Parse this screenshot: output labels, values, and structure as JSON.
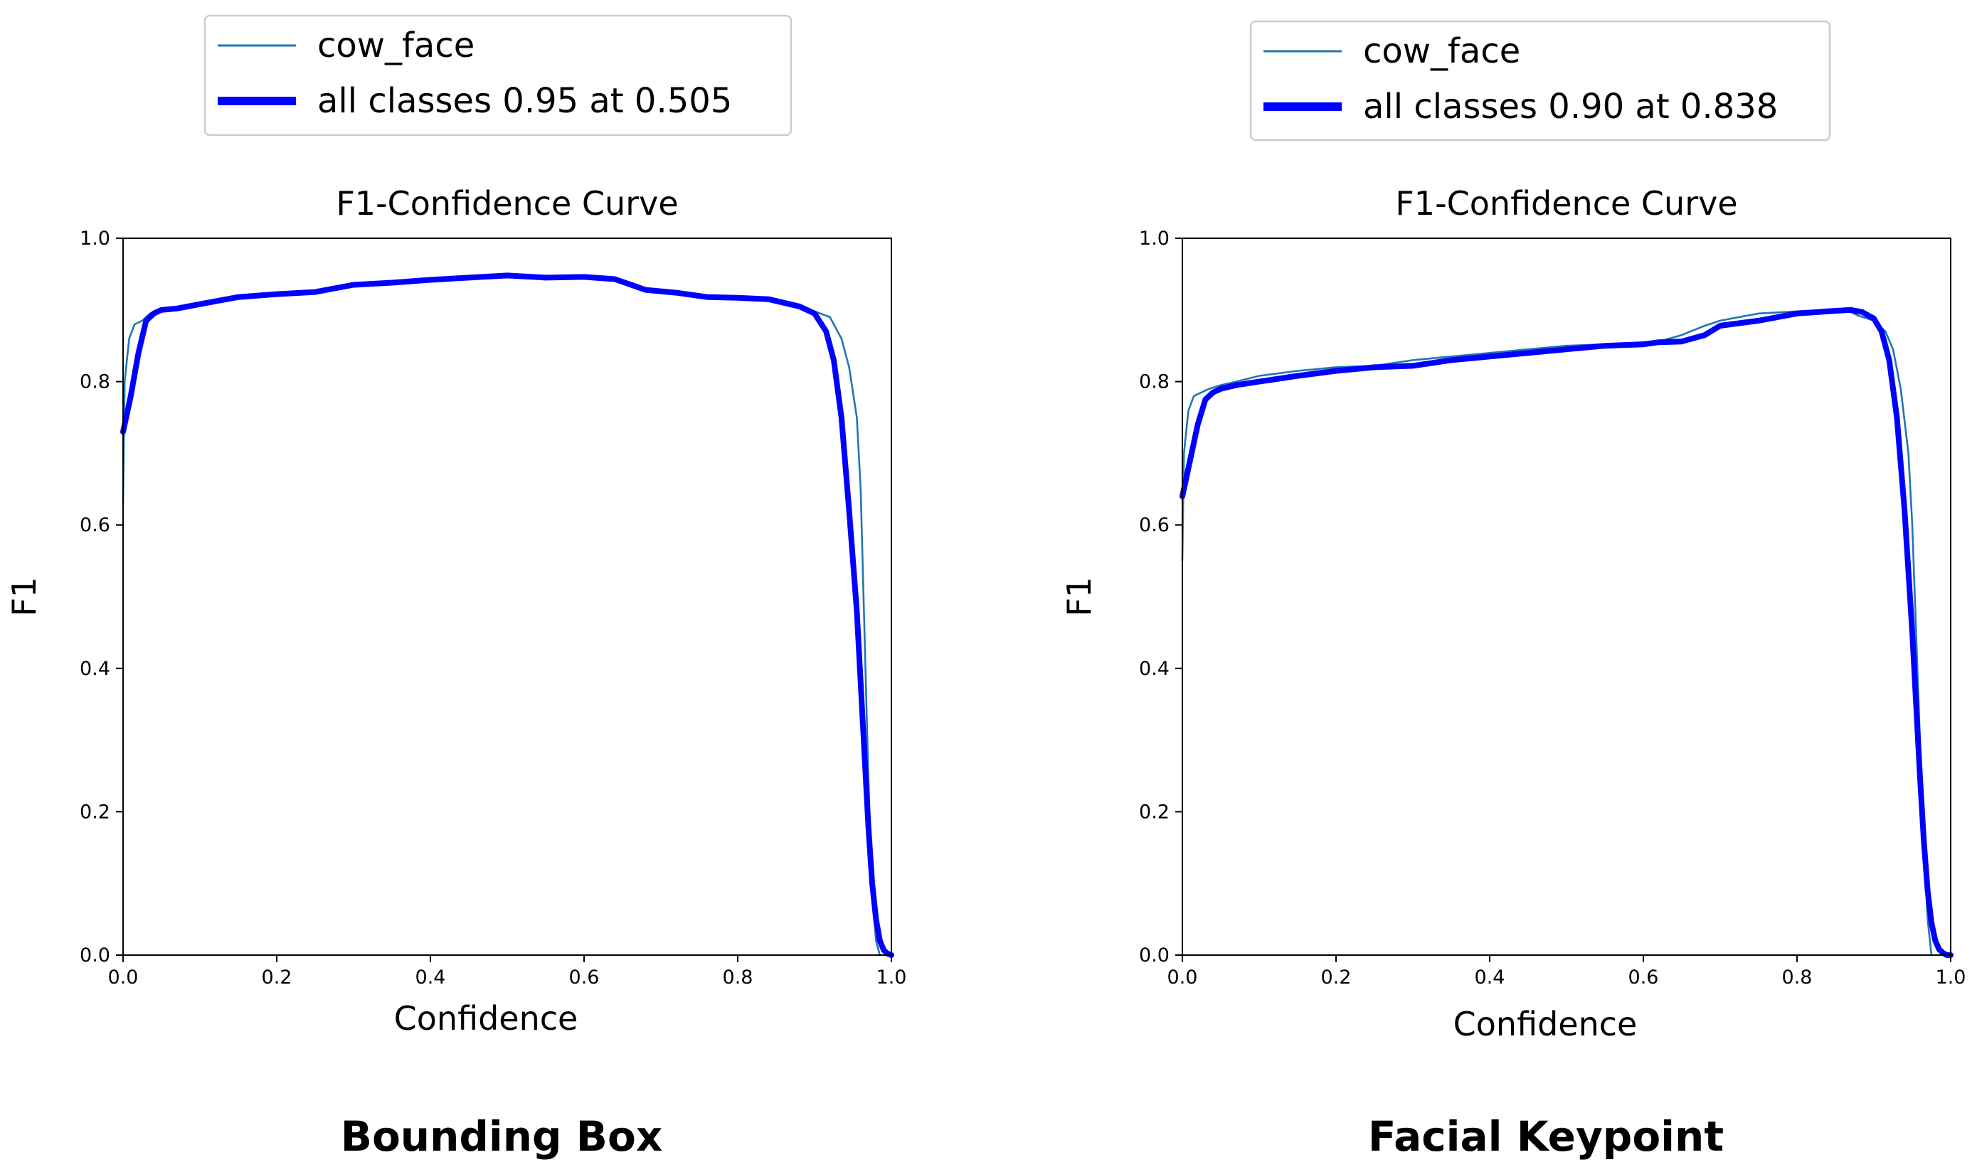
{
  "chart_data": [
    {
      "type": "line",
      "id": "left",
      "panel_caption": "Bounding Box",
      "title": "F1-Confidence Curve",
      "xlabel": "Confidence",
      "ylabel": "F1",
      "xlim": [
        0,
        1
      ],
      "ylim": [
        0,
        1
      ],
      "xticks": [
        "0.0",
        "0.2",
        "0.4",
        "0.6",
        "0.8",
        "1.0"
      ],
      "yticks": [
        "0.0",
        "0.2",
        "0.4",
        "0.6",
        "0.8",
        "1.0"
      ],
      "grid": false,
      "legend_position": "top",
      "series": [
        {
          "name": "cow_face",
          "color": "#1f77b4",
          "style": "thin",
          "x": [
            0,
            0.002,
            0.008,
            0.015,
            0.025,
            0.035,
            0.05,
            0.07,
            0.1,
            0.15,
            0.2,
            0.25,
            0.3,
            0.35,
            0.4,
            0.45,
            0.5,
            0.55,
            0.6,
            0.64,
            0.68,
            0.72,
            0.76,
            0.8,
            0.84,
            0.88,
            0.9,
            0.92,
            0.935,
            0.945,
            0.955,
            0.96,
            0.965,
            0.97,
            0.975,
            0.98,
            0.985
          ],
          "y": [
            0.63,
            0.8,
            0.86,
            0.88,
            0.885,
            0.895,
            0.9,
            0.902,
            0.908,
            0.918,
            0.922,
            0.925,
            0.935,
            0.938,
            0.942,
            0.945,
            0.948,
            0.945,
            0.946,
            0.943,
            0.928,
            0.924,
            0.918,
            0.917,
            0.915,
            0.905,
            0.898,
            0.89,
            0.86,
            0.82,
            0.75,
            0.65,
            0.45,
            0.25,
            0.08,
            0.02,
            0.0
          ]
        },
        {
          "name": "all classes 0.95 at 0.505",
          "color": "#0000ff",
          "style": "thick",
          "x": [
            0,
            0.01,
            0.02,
            0.03,
            0.04,
            0.05,
            0.07,
            0.1,
            0.15,
            0.2,
            0.25,
            0.3,
            0.35,
            0.4,
            0.45,
            0.5,
            0.55,
            0.6,
            0.64,
            0.68,
            0.72,
            0.76,
            0.8,
            0.84,
            0.88,
            0.9,
            0.915,
            0.925,
            0.935,
            0.945,
            0.955,
            0.96,
            0.965,
            0.97,
            0.975,
            0.98,
            0.985,
            0.99,
            0.995,
            1.0
          ],
          "y": [
            0.73,
            0.78,
            0.84,
            0.885,
            0.895,
            0.9,
            0.902,
            0.908,
            0.918,
            0.922,
            0.925,
            0.935,
            0.938,
            0.942,
            0.945,
            0.948,
            0.945,
            0.946,
            0.943,
            0.928,
            0.924,
            0.918,
            0.917,
            0.915,
            0.905,
            0.895,
            0.87,
            0.83,
            0.75,
            0.62,
            0.48,
            0.38,
            0.28,
            0.18,
            0.1,
            0.05,
            0.02,
            0.007,
            0.002,
            0.0
          ]
        }
      ]
    },
    {
      "type": "line",
      "id": "right",
      "panel_caption": "Facial Keypoint",
      "title": "F1-Confidence Curve",
      "xlabel": "Confidence",
      "ylabel": "F1",
      "xlim": [
        0,
        1
      ],
      "ylim": [
        0,
        1
      ],
      "xticks": [
        "0.0",
        "0.2",
        "0.4",
        "0.6",
        "0.8",
        "1.0"
      ],
      "yticks": [
        "0.0",
        "0.2",
        "0.4",
        "0.6",
        "0.8",
        "1.0"
      ],
      "grid": false,
      "legend_position": "top",
      "series": [
        {
          "name": "cow_face",
          "color": "#1f77b4",
          "style": "thin",
          "x": [
            0,
            0.002,
            0.008,
            0.015,
            0.025,
            0.035,
            0.05,
            0.07,
            0.1,
            0.15,
            0.2,
            0.25,
            0.3,
            0.35,
            0.4,
            0.45,
            0.5,
            0.55,
            0.6,
            0.62,
            0.65,
            0.68,
            0.7,
            0.75,
            0.8,
            0.84,
            0.87,
            0.88,
            0.9,
            0.915,
            0.925,
            0.935,
            0.945,
            0.95,
            0.955,
            0.96,
            0.965,
            0.97,
            0.975
          ],
          "y": [
            0.55,
            0.7,
            0.76,
            0.78,
            0.785,
            0.79,
            0.795,
            0.8,
            0.808,
            0.815,
            0.82,
            0.822,
            0.83,
            0.835,
            0.84,
            0.845,
            0.85,
            0.852,
            0.855,
            0.856,
            0.865,
            0.878,
            0.885,
            0.895,
            0.898,
            0.9,
            0.897,
            0.892,
            0.885,
            0.87,
            0.845,
            0.79,
            0.7,
            0.6,
            0.45,
            0.3,
            0.15,
            0.05,
            0.0
          ]
        },
        {
          "name": "all classes 0.90 at 0.838",
          "color": "#0000ff",
          "style": "thick",
          "x": [
            0,
            0.01,
            0.02,
            0.03,
            0.04,
            0.05,
            0.07,
            0.1,
            0.15,
            0.2,
            0.25,
            0.3,
            0.35,
            0.4,
            0.45,
            0.5,
            0.55,
            0.6,
            0.62,
            0.65,
            0.68,
            0.7,
            0.75,
            0.8,
            0.84,
            0.87,
            0.885,
            0.9,
            0.91,
            0.92,
            0.93,
            0.94,
            0.95,
            0.955,
            0.96,
            0.965,
            0.97,
            0.975,
            0.98,
            0.985,
            0.99,
            0.995,
            1.0
          ],
          "y": [
            0.64,
            0.69,
            0.74,
            0.775,
            0.785,
            0.79,
            0.795,
            0.8,
            0.808,
            0.815,
            0.82,
            0.822,
            0.83,
            0.835,
            0.84,
            0.845,
            0.85,
            0.852,
            0.855,
            0.856,
            0.865,
            0.878,
            0.885,
            0.895,
            0.898,
            0.9,
            0.897,
            0.888,
            0.87,
            0.83,
            0.75,
            0.62,
            0.45,
            0.35,
            0.25,
            0.16,
            0.09,
            0.045,
            0.02,
            0.008,
            0.003,
            0.0,
            0.0
          ]
        }
      ]
    }
  ]
}
